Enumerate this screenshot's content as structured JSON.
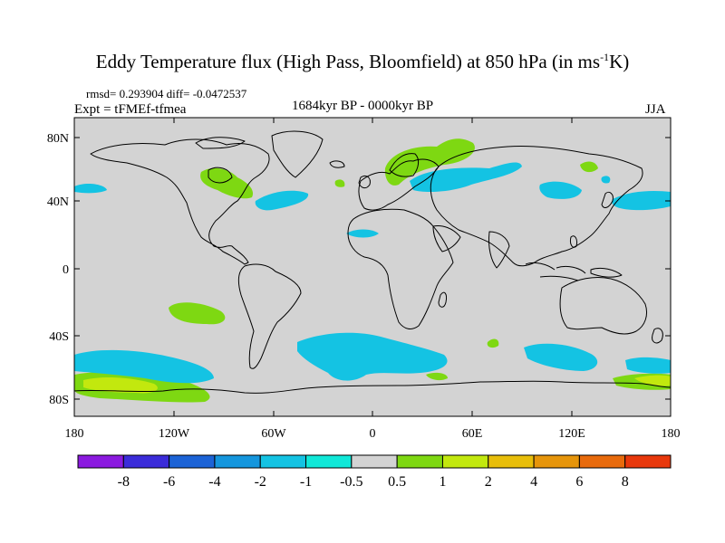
{
  "title": {
    "main": "Eddy Temperature flux (High Pass, Bloomfield) at 850 hPa (in ms",
    "sup": "-1",
    "end": "K)"
  },
  "stats": {
    "rmsd_label": "rmsd=",
    "rmsd": "0.293904",
    "diff_label": "diff=",
    "diff": "-0.0472537"
  },
  "experiment": "Expt = tFMEf-tfmea",
  "period": "1684kyr BP - 0000kyr BP",
  "season": "JJA",
  "map": {
    "projection": "cylindrical-equidistant",
    "background_color": "#d3d3d3",
    "lat_labels": [
      "80N",
      "40N",
      "0",
      "40S",
      "80S"
    ],
    "lon_labels": [
      "180",
      "120W",
      "60W",
      "0",
      "60E",
      "120E",
      "180"
    ]
  },
  "colorbar": {
    "colors": [
      "#8b1adf",
      "#3b2cd9",
      "#1c63d6",
      "#1596dd",
      "#14c3e3",
      "#10e8d8",
      "#d3d3d3",
      "#7ed812",
      "#c2e80e",
      "#e8be0a",
      "#e6950b",
      "#e86a0c",
      "#e8380c"
    ],
    "labels": [
      "-8",
      "-6",
      "-4",
      "-2",
      "-1",
      "-0.5",
      "0.5",
      "1",
      "2",
      "4",
      "6",
      "8"
    ]
  }
}
